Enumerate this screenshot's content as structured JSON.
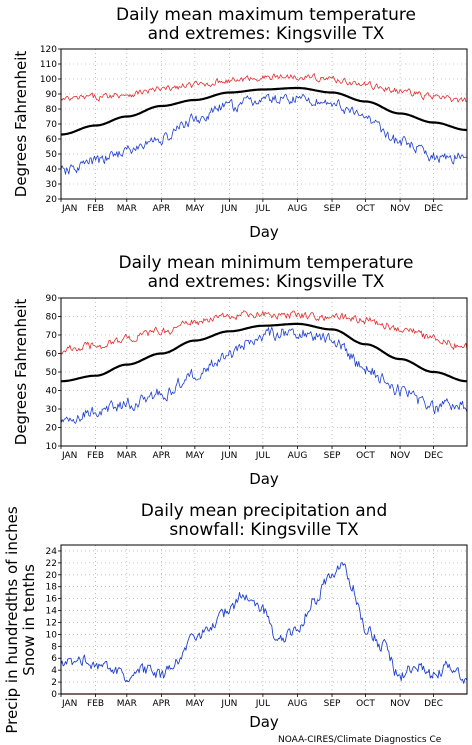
{
  "credit": "NOAA-CIRES/Climate Diagnostics Ce",
  "colors": {
    "max": "#e03030",
    "mean": "#000000",
    "min": "#2040d0",
    "snow": "#e03030",
    "grid": "#9a9a9a"
  },
  "chart_data": [
    {
      "type": "line",
      "title_lines": [
        "Daily mean maximum temperature",
        "and extremes: Kingsville TX"
      ],
      "xlabel": "Day",
      "ylabel": "Degrees Fahrenheit",
      "ylim": [
        20,
        120
      ],
      "yticks": [
        20,
        30,
        40,
        50,
        60,
        70,
        80,
        90,
        100,
        110,
        120
      ],
      "months": [
        "JAN",
        "FEB",
        "MAR",
        "APR",
        "MAY",
        "JUN",
        "JUL",
        "AUG",
        "SEP",
        "OCT",
        "NOV",
        "DEC"
      ],
      "grid": true,
      "series": [
        {
          "key": "high",
          "color": "#e03030",
          "width": 0.8,
          "noise": 3.5,
          "anchors": [
            [
              1,
              86
            ],
            [
              32,
              88
            ],
            [
              60,
              90
            ],
            [
              91,
              93
            ],
            [
              121,
              96
            ],
            [
              152,
              99
            ],
            [
              182,
              101
            ],
            [
              213,
              102
            ],
            [
              244,
              100
            ],
            [
              274,
              96
            ],
            [
              305,
              92
            ],
            [
              335,
              88
            ],
            [
              365,
              85
            ]
          ]
        },
        {
          "key": "mean",
          "color": "#000000",
          "width": 2.2,
          "noise": 0,
          "anchors": [
            [
              1,
              63
            ],
            [
              32,
              69
            ],
            [
              60,
              75
            ],
            [
              91,
              82
            ],
            [
              121,
              86
            ],
            [
              152,
              91
            ],
            [
              182,
              93
            ],
            [
              213,
              94
            ],
            [
              244,
              91
            ],
            [
              274,
              85
            ],
            [
              305,
              77
            ],
            [
              335,
              71
            ],
            [
              365,
              66
            ]
          ]
        },
        {
          "key": "low",
          "color": "#2040d0",
          "width": 0.8,
          "noise": 6,
          "anchors": [
            [
              1,
              38
            ],
            [
              32,
              45
            ],
            [
              60,
              52
            ],
            [
              91,
              60
            ],
            [
              121,
              73
            ],
            [
              152,
              82
            ],
            [
              182,
              86
            ],
            [
              213,
              87
            ],
            [
              244,
              84
            ],
            [
              274,
              74
            ],
            [
              305,
              58
            ],
            [
              335,
              48
            ],
            [
              365,
              48
            ]
          ]
        }
      ]
    },
    {
      "type": "line",
      "title_lines": [
        "Daily mean minimum temperature",
        "and extremes: Kingsville TX"
      ],
      "xlabel": "Day",
      "ylabel": "Degrees Fahrenheit",
      "ylim": [
        10,
        90
      ],
      "yticks": [
        10,
        20,
        30,
        40,
        50,
        60,
        70,
        80,
        90
      ],
      "months": [
        "JAN",
        "FEB",
        "MAR",
        "APR",
        "MAY",
        "JUN",
        "JUL",
        "AUG",
        "SEP",
        "OCT",
        "NOV",
        "DEC"
      ],
      "grid": true,
      "series": [
        {
          "key": "high",
          "color": "#e03030",
          "width": 0.8,
          "noise": 3.5,
          "anchors": [
            [
              1,
              62
            ],
            [
              32,
              64
            ],
            [
              60,
              68
            ],
            [
              91,
              72
            ],
            [
              121,
              77
            ],
            [
              152,
              80
            ],
            [
              182,
              81
            ],
            [
              213,
              81
            ],
            [
              244,
              80
            ],
            [
              274,
              78
            ],
            [
              305,
              74
            ],
            [
              335,
              68
            ],
            [
              365,
              63
            ]
          ]
        },
        {
          "key": "mean",
          "color": "#000000",
          "width": 2.2,
          "noise": 0,
          "anchors": [
            [
              1,
              45
            ],
            [
              32,
              48
            ],
            [
              60,
              54
            ],
            [
              91,
              60
            ],
            [
              121,
              67
            ],
            [
              152,
              72
            ],
            [
              182,
              75
            ],
            [
              213,
              76
            ],
            [
              244,
              73
            ],
            [
              274,
              65
            ],
            [
              305,
              57
            ],
            [
              335,
              50
            ],
            [
              365,
              45
            ]
          ]
        },
        {
          "key": "low",
          "color": "#2040d0",
          "width": 0.8,
          "noise": 5.5,
          "anchors": [
            [
              1,
              24
            ],
            [
              32,
              28
            ],
            [
              60,
              33
            ],
            [
              91,
              38
            ],
            [
              121,
              49
            ],
            [
              152,
              60
            ],
            [
              182,
              70
            ],
            [
              213,
              72
            ],
            [
              244,
              68
            ],
            [
              274,
              52
            ],
            [
              305,
              40
            ],
            [
              335,
              31
            ],
            [
              365,
              32
            ]
          ]
        }
      ]
    },
    {
      "type": "line",
      "title_lines": [
        "Daily mean precipitation and",
        "snowfall: Kingsville TX"
      ],
      "xlabel": "Day",
      "ylabel_lines": [
        "Precip in hundredths of inches",
        "Snow in tenths"
      ],
      "ylim": [
        0,
        25
      ],
      "yticks": [
        0,
        2,
        4,
        6,
        8,
        10,
        12,
        14,
        16,
        18,
        20,
        22,
        24
      ],
      "months": [
        "JAN",
        "FEB",
        "MAR",
        "APR",
        "MAY",
        "JUN",
        "JUL",
        "AUG",
        "SEP",
        "OCT",
        "NOV",
        "DEC"
      ],
      "grid": true,
      "series": [
        {
          "key": "precip",
          "color": "#2040d0",
          "width": 0.9,
          "noise": 1.6,
          "anchors": [
            [
              1,
              5
            ],
            [
              20,
              6
            ],
            [
              32,
              5
            ],
            [
              50,
              4
            ],
            [
              60,
              2
            ],
            [
              75,
              4
            ],
            [
              91,
              3
            ],
            [
              105,
              6
            ],
            [
              121,
              9
            ],
            [
              135,
              11
            ],
            [
              152,
              14
            ],
            [
              165,
              17
            ],
            [
              182,
              14
            ],
            [
              195,
              9
            ],
            [
              213,
              11
            ],
            [
              228,
              16
            ],
            [
              244,
              20
            ],
            [
              255,
              22
            ],
            [
              262,
              18
            ],
            [
              274,
              11
            ],
            [
              290,
              8
            ],
            [
              305,
              3
            ],
            [
              320,
              5
            ],
            [
              335,
              3
            ],
            [
              350,
              5
            ],
            [
              365,
              2
            ]
          ]
        },
        {
          "key": "snow",
          "color": "#e03030",
          "width": 1.2,
          "noise": 0,
          "anchors": [
            [
              1,
              0
            ],
            [
              365,
              0
            ]
          ]
        }
      ]
    }
  ]
}
